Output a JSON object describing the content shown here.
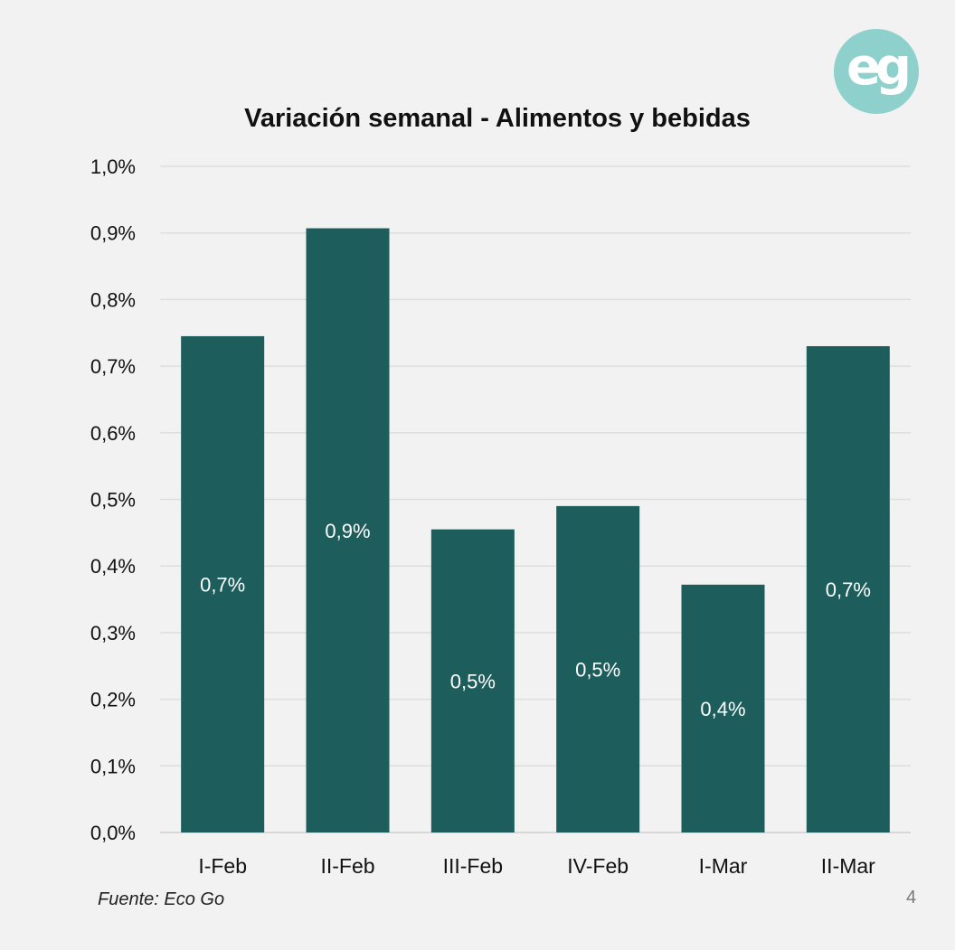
{
  "chart_data": {
    "type": "bar",
    "title": "Variación semanal - Alimentos y bebidas",
    "categories": [
      "I-Feb",
      "II-Feb",
      "III-Feb",
      "IV-Feb",
      "I-Mar",
      "II-Mar"
    ],
    "values": [
      0.745,
      0.907,
      0.455,
      0.49,
      0.372,
      0.73
    ],
    "data_labels": [
      "0,7%",
      "0,9%",
      "0,5%",
      "0,5%",
      "0,4%",
      "0,7%"
    ],
    "ylim": [
      0,
      1.0
    ],
    "yticks": [
      0,
      0.1,
      0.2,
      0.3,
      0.4,
      0.5,
      0.6,
      0.7,
      0.8,
      0.9,
      1.0
    ],
    "ytick_labels": [
      "0,0%",
      "0,1%",
      "0,2%",
      "0,3%",
      "0,4%",
      "0,5%",
      "0,6%",
      "0,7%",
      "0,8%",
      "0,9%",
      "1,0%"
    ],
    "xlabel": "",
    "ylabel": "",
    "grid": true,
    "bar_color": "#1d5e5d",
    "label_color": "#ffffff"
  },
  "logo": {
    "text": "eg",
    "color": "#8ed0cc"
  },
  "footer": {
    "source": "Fuente: Eco Go",
    "page_number": "4"
  }
}
